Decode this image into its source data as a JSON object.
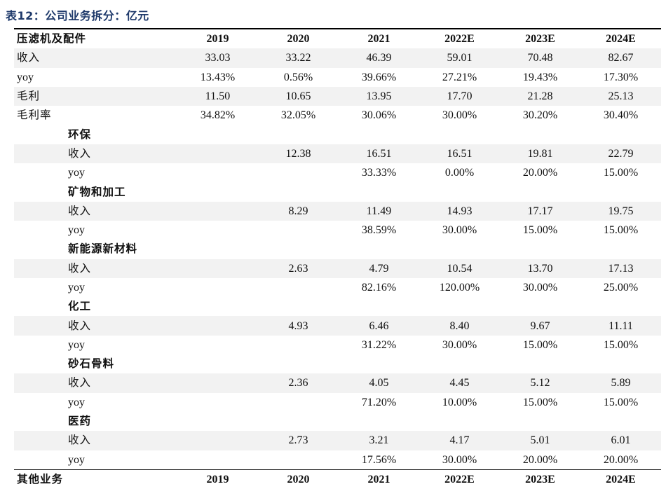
{
  "caption": "表12：公司业务拆分：亿元",
  "header": {
    "label": "压滤机及配件",
    "years": [
      "2019",
      "2020",
      "2021",
      "2022E",
      "2023E",
      "2024E"
    ]
  },
  "main_rows": [
    {
      "label": "收入",
      "values": [
        "33.03",
        "33.22",
        "46.39",
        "59.01",
        "70.48",
        "82.67"
      ]
    },
    {
      "label": "yoy",
      "values": [
        "13.43%",
        "0.56%",
        "39.66%",
        "27.21%",
        "19.43%",
        "17.30%"
      ]
    },
    {
      "label": "毛利",
      "values": [
        "11.50",
        "10.65",
        "13.95",
        "17.70",
        "21.28",
        "25.13"
      ]
    },
    {
      "label": "毛利率",
      "values": [
        "34.82%",
        "32.05%",
        "30.06%",
        "30.00%",
        "30.20%",
        "30.40%"
      ]
    }
  ],
  "segments": [
    {
      "name": "环保",
      "revenue": {
        "label": "收入",
        "values": [
          "",
          "12.38",
          "16.51",
          "16.51",
          "19.81",
          "22.79"
        ]
      },
      "yoy": {
        "label": "yoy",
        "values": [
          "",
          "",
          "33.33%",
          "0.00%",
          "20.00%",
          "15.00%"
        ]
      }
    },
    {
      "name": "矿物和加工",
      "revenue": {
        "label": "收入",
        "values": [
          "",
          "8.29",
          "11.49",
          "14.93",
          "17.17",
          "19.75"
        ]
      },
      "yoy": {
        "label": "yoy",
        "values": [
          "",
          "",
          "38.59%",
          "30.00%",
          "15.00%",
          "15.00%"
        ]
      }
    },
    {
      "name": "新能源新材料",
      "revenue": {
        "label": "收入",
        "values": [
          "",
          "2.63",
          "4.79",
          "10.54",
          "13.70",
          "17.13"
        ]
      },
      "yoy": {
        "label": "yoy",
        "values": [
          "",
          "",
          "82.16%",
          "120.00%",
          "30.00%",
          "25.00%"
        ]
      }
    },
    {
      "name": "化工",
      "revenue": {
        "label": "收入",
        "values": [
          "",
          "4.93",
          "6.46",
          "8.40",
          "9.67",
          "11.11"
        ]
      },
      "yoy": {
        "label": "yoy",
        "values": [
          "",
          "",
          "31.22%",
          "30.00%",
          "15.00%",
          "15.00%"
        ]
      }
    },
    {
      "name": "砂石骨料",
      "revenue": {
        "label": "收入",
        "values": [
          "",
          "2.36",
          "4.05",
          "4.45",
          "5.12",
          "5.89"
        ]
      },
      "yoy": {
        "label": "yoy",
        "values": [
          "",
          "",
          "71.20%",
          "10.00%",
          "15.00%",
          "15.00%"
        ]
      }
    },
    {
      "name": "医药",
      "revenue": {
        "label": "收入",
        "values": [
          "",
          "2.73",
          "3.21",
          "4.17",
          "5.01",
          "6.01"
        ]
      },
      "yoy": {
        "label": "yoy",
        "values": [
          "",
          "",
          "17.56%",
          "30.00%",
          "20.00%",
          "20.00%"
        ]
      }
    }
  ],
  "footer_header": {
    "label": "其他业务",
    "years": [
      "2019",
      "2020",
      "2021",
      "2022E",
      "2023E",
      "2024E"
    ]
  }
}
